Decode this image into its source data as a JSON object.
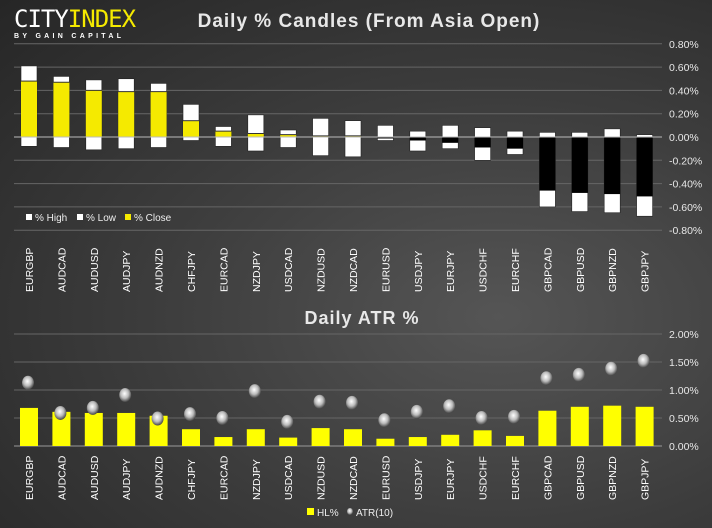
{
  "logo": {
    "city": "CITY",
    "index": "INDEX",
    "tagline": "BY GAIN CAPITAL"
  },
  "chart_data": [
    {
      "type": "bar",
      "title": "Daily % Candles (From Asia Open)",
      "categories": [
        "EURGBP",
        "AUDCAD",
        "AUDUSD",
        "AUDJPY",
        "AUDNZD",
        "CHFJPY",
        "EURCAD",
        "NZDJPY",
        "USDCAD",
        "NZDUSD",
        "NZDCAD",
        "EURUSD",
        "USDJPY",
        "EURJPY",
        "USDCHF",
        "EURCHF",
        "GBPCAD",
        "GBPUSD",
        "GBPNZD",
        "GBPJPY"
      ],
      "series": [
        {
          "name": "% High",
          "values": [
            0.61,
            0.52,
            0.49,
            0.5,
            0.46,
            0.28,
            0.09,
            0.19,
            0.06,
            0.16,
            0.14,
            0.1,
            0.05,
            0.1,
            0.08,
            0.05,
            0.04,
            0.04,
            0.07,
            0.02
          ]
        },
        {
          "name": "% Low",
          "values": [
            -0.08,
            -0.09,
            -0.11,
            -0.1,
            -0.09,
            -0.03,
            -0.08,
            -0.12,
            -0.09,
            -0.16,
            -0.17,
            -0.03,
            -0.12,
            -0.1,
            -0.2,
            -0.15,
            -0.6,
            -0.64,
            -0.65,
            -0.68
          ]
        },
        {
          "name": "% Close",
          "values": [
            0.48,
            0.47,
            0.4,
            0.39,
            0.39,
            0.14,
            0.05,
            0.03,
            0.02,
            0.01,
            0.01,
            -0.01,
            -0.03,
            -0.05,
            -0.09,
            -0.1,
            -0.46,
            -0.48,
            -0.49,
            -0.51
          ]
        }
      ],
      "ylim": [
        -0.8,
        0.8
      ],
      "yticks": [
        "0.80%",
        "0.60%",
        "0.40%",
        "0.20%",
        "0.00%",
        "-0.20%",
        "-0.40%",
        "-0.60%",
        "-0.80%"
      ],
      "grid": true,
      "legend": "bottom-left",
      "colors": {
        "high": "#ffffff",
        "low": "#ffffff",
        "close_up": "#f5ea00",
        "close_down": "#000000"
      }
    },
    {
      "type": "bar",
      "title": "Daily ATR %",
      "categories": [
        "EURGBP",
        "AUDCAD",
        "AUDUSD",
        "AUDJPY",
        "AUDNZD",
        "CHFJPY",
        "EURCAD",
        "NZDJPY",
        "USDCAD",
        "NZDUSD",
        "NZDCAD",
        "EURUSD",
        "USDJPY",
        "EURJPY",
        "USDCHF",
        "EURCHF",
        "GBPCAD",
        "GBPUSD",
        "GBPNZD",
        "GBPJPY"
      ],
      "series": [
        {
          "name": "HL%",
          "type": "bar",
          "values": [
            0.68,
            0.61,
            0.59,
            0.59,
            0.54,
            0.3,
            0.16,
            0.3,
            0.15,
            0.32,
            0.3,
            0.13,
            0.16,
            0.2,
            0.28,
            0.18,
            0.63,
            0.7,
            0.72,
            0.7
          ]
        },
        {
          "name": "ATR(10)",
          "type": "scatter",
          "values": [
            1.13,
            0.59,
            0.68,
            0.91,
            0.49,
            0.57,
            0.5,
            0.98,
            0.43,
            0.79,
            0.77,
            0.46,
            0.61,
            0.71,
            0.5,
            0.52,
            1.21,
            1.27,
            1.38,
            1.52
          ]
        }
      ],
      "ylim": [
        0,
        2
      ],
      "yticks": [
        "2.00%",
        "1.50%",
        "1.00%",
        "0.50%",
        "0.00%"
      ],
      "grid": true,
      "legend": "bottom",
      "colors": {
        "bar": "#ffff00",
        "marker": "#cccccc"
      }
    }
  ]
}
